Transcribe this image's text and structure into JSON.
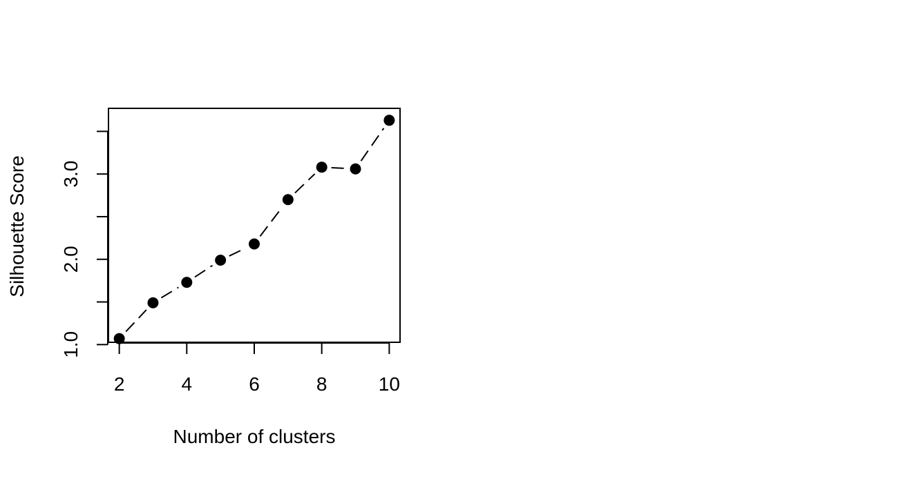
{
  "chart_data": {
    "type": "line",
    "title": "",
    "xlabel": "Number of clusters",
    "ylabel": "Silhouette Score",
    "x": [
      2,
      3,
      4,
      5,
      6,
      7,
      8,
      9,
      10
    ],
    "series": [
      {
        "values": [
          1.07,
          1.49,
          1.73,
          1.99,
          2.18,
          2.7,
          3.08,
          3.06,
          3.63
        ]
      }
    ],
    "xlim": [
      1.68,
      10.32
    ],
    "ylim": [
      1.027,
      3.77
    ],
    "x_ticks": [
      2,
      4,
      6,
      8,
      10
    ],
    "x_tick_labels": [
      "2",
      "4",
      "6",
      "8",
      "10"
    ],
    "y_ticks": [
      1.0,
      1.5,
      2.0,
      2.5,
      3.0,
      3.5
    ],
    "y_tick_labels": [
      "1.0",
      "",
      "2.0",
      "",
      "3.0",
      ""
    ],
    "line_style": "dashed",
    "marker": "filled-circle",
    "color": "#000000",
    "grid": false,
    "legend": "none"
  }
}
